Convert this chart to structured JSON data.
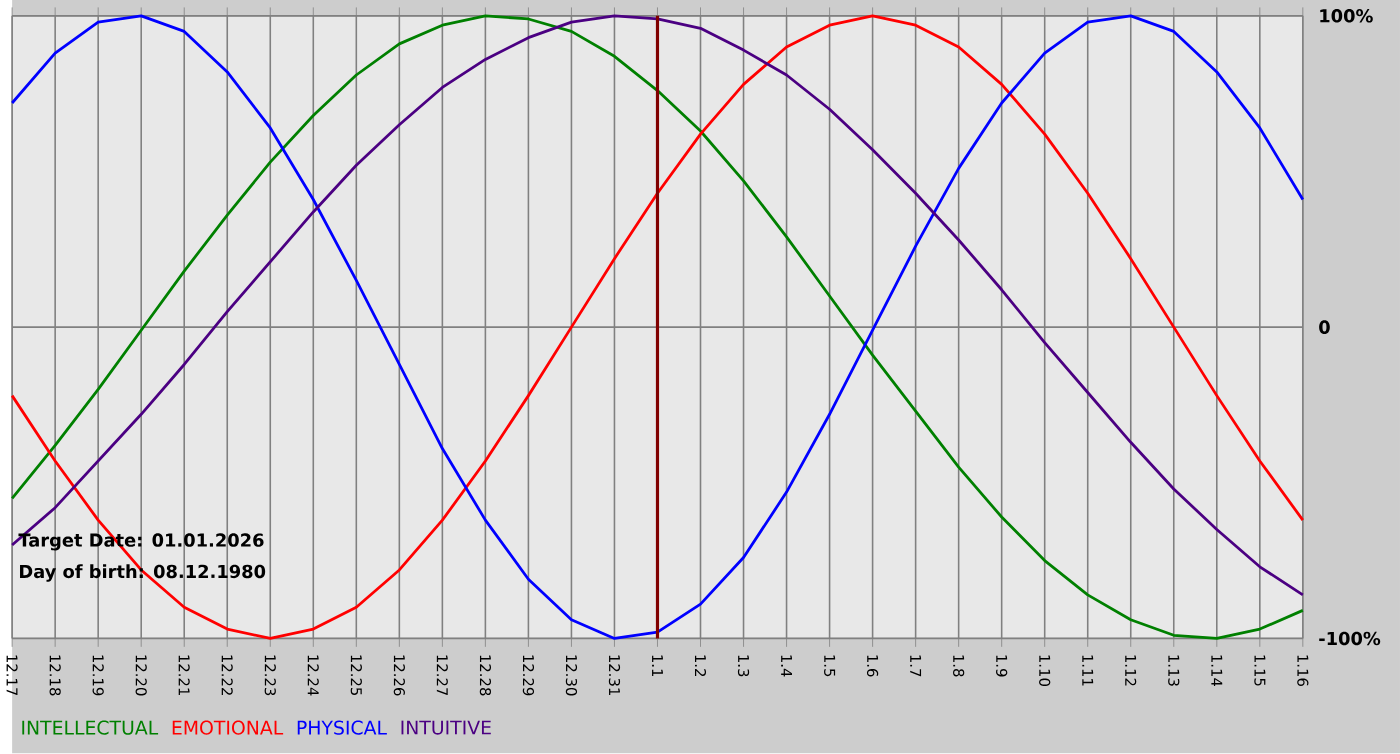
{
  "chart_data": {
    "type": "line",
    "categories": [
      "12.17",
      "12.18",
      "12.19",
      "12.20",
      "12.21",
      "12.22",
      "12.23",
      "12.24",
      "12.25",
      "12.26",
      "12.27",
      "12.28",
      "12.29",
      "12.30",
      "12.31",
      "1.1",
      "1.2",
      "1.3",
      "1.4",
      "1.5",
      "1.6",
      "1.7",
      "1.8",
      "1.9",
      "1.10",
      "1.11",
      "1.12",
      "1.13",
      "1.14",
      "1.15",
      "1.16"
    ],
    "series": [
      {
        "name": "INTELLECTUAL",
        "color": "#008000",
        "values": [
          -55,
          -38,
          -20,
          -1,
          18,
          36,
          53,
          68,
          81,
          91,
          97,
          100,
          99,
          95,
          87,
          76,
          63,
          47,
          29,
          10,
          -9,
          -27,
          -45,
          -61,
          -75,
          -86,
          -94,
          -99,
          -100,
          -97,
          -91
        ]
      },
      {
        "name": "EMOTIONAL",
        "color": "#ff0000",
        "values": [
          -22,
          -43,
          -62,
          -78,
          -90,
          -97,
          -100,
          -97,
          -90,
          -78,
          -62,
          -43,
          -22,
          0,
          22,
          43,
          62,
          78,
          90,
          97,
          100,
          97,
          90,
          78,
          62,
          43,
          22,
          0,
          -22,
          -43,
          -62
        ]
      },
      {
        "name": "PHYSICAL",
        "color": "#0000ff",
        "values": [
          72,
          88,
          98,
          100,
          95,
          82,
          64,
          41,
          15,
          -12,
          -39,
          -62,
          -81,
          -94,
          -100,
          -98,
          -89,
          -74,
          -53,
          -28,
          -1,
          26,
          51,
          72,
          88,
          98,
          100,
          95,
          82,
          64,
          41
        ]
      },
      {
        "name": "INTUITIVE",
        "color": "#4b0082",
        "values": [
          -70,
          -58,
          -43,
          -28,
          -12,
          5,
          21,
          37,
          52,
          65,
          77,
          86,
          93,
          98,
          100,
          99,
          96,
          89,
          81,
          70,
          57,
          43,
          28,
          12,
          -5,
          -21,
          -37,
          -52,
          -65,
          -77,
          -86
        ]
      }
    ],
    "ylim": [
      -100,
      100
    ],
    "yticks": [
      {
        "value": 100,
        "label": "100%"
      },
      0,
      {
        "value": -100,
        "label": "-100%"
      }
    ],
    "grid": true,
    "legend": "bottom left",
    "marker": "none",
    "line_style": "solid",
    "ref_lines": [
      {
        "axis": "x",
        "value": "1.1",
        "color": "#800000"
      }
    ],
    "annotations": [
      "Target Date: 01.01.2026",
      "Day of birth: 08.12.1980"
    ]
  }
}
